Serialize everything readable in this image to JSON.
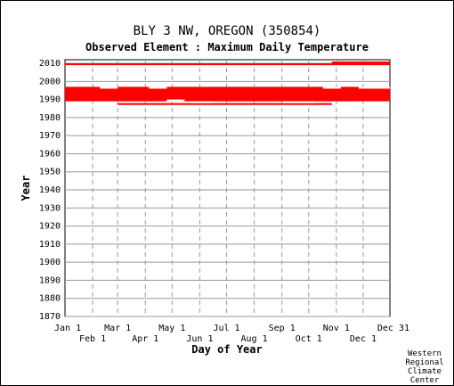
{
  "chart_data": {
    "type": "scatter",
    "title": "BLY 3 NW, OREGON   (350854)",
    "subtitle": "Observed Element : Maximum Daily Temperature",
    "xlabel": "Day of Year",
    "ylabel": "Year",
    "credit": [
      "Western",
      "Regional",
      "Climate",
      "Center"
    ],
    "xlim": [
      1,
      365
    ],
    "ylim": [
      1870,
      2012
    ],
    "y_ticks": [
      1870,
      1880,
      1890,
      1900,
      1910,
      1920,
      1930,
      1940,
      1950,
      1960,
      1970,
      1980,
      1990,
      2000,
      2010
    ],
    "x_ticks_row1": [
      {
        "label": "Jan 1",
        "day": 1
      },
      {
        "label": "Mar 1",
        "day": 60
      },
      {
        "label": "May 1",
        "day": 121
      },
      {
        "label": "Jul 1",
        "day": 182
      },
      {
        "label": "Sep 1",
        "day": 244
      },
      {
        "label": "Nov 1",
        "day": 305
      },
      {
        "label": "Dec 31",
        "day": 365
      }
    ],
    "x_ticks_row2": [
      {
        "label": "Feb 1",
        "day": 32
      },
      {
        "label": "Apr 1",
        "day": 91
      },
      {
        "label": "Jun 1",
        "day": 152
      },
      {
        "label": "Aug 1",
        "day": 213
      },
      {
        "label": "Oct 1",
        "day": 274
      },
      {
        "label": "Dec 1",
        "day": 335
      }
    ],
    "grid": true,
    "series_color": "#ff0000",
    "data_blocks": [
      {
        "days": [
          1,
          365
        ],
        "years": [
          1989,
          1997
        ]
      },
      {
        "days": [
          1,
          365
        ],
        "years": [
          2009,
          2010
        ]
      }
    ],
    "gaps": [
      {
        "days": [
          40,
          60
        ],
        "years": [
          1996,
          1997
        ]
      },
      {
        "days": [
          95,
          115
        ],
        "years": [
          1996,
          1997
        ]
      },
      {
        "days": [
          115,
          135
        ],
        "years": [
          1989,
          1990
        ]
      },
      {
        "days": [
          140,
          165
        ],
        "years": [
          1988,
          1989
        ]
      },
      {
        "days": [
          245,
          280
        ],
        "years": [
          1988,
          1989
        ]
      },
      {
        "days": [
          290,
          310
        ],
        "years": [
          1996,
          1997
        ]
      },
      {
        "days": [
          330,
          365
        ],
        "years": [
          1996,
          1997
        ]
      }
    ],
    "extra_rows": [
      {
        "days": [
          60,
          300
        ],
        "years": [
          1987,
          1988
        ]
      },
      {
        "days": [
          300,
          365
        ],
        "years": [
          2009,
          2011
        ]
      }
    ]
  }
}
